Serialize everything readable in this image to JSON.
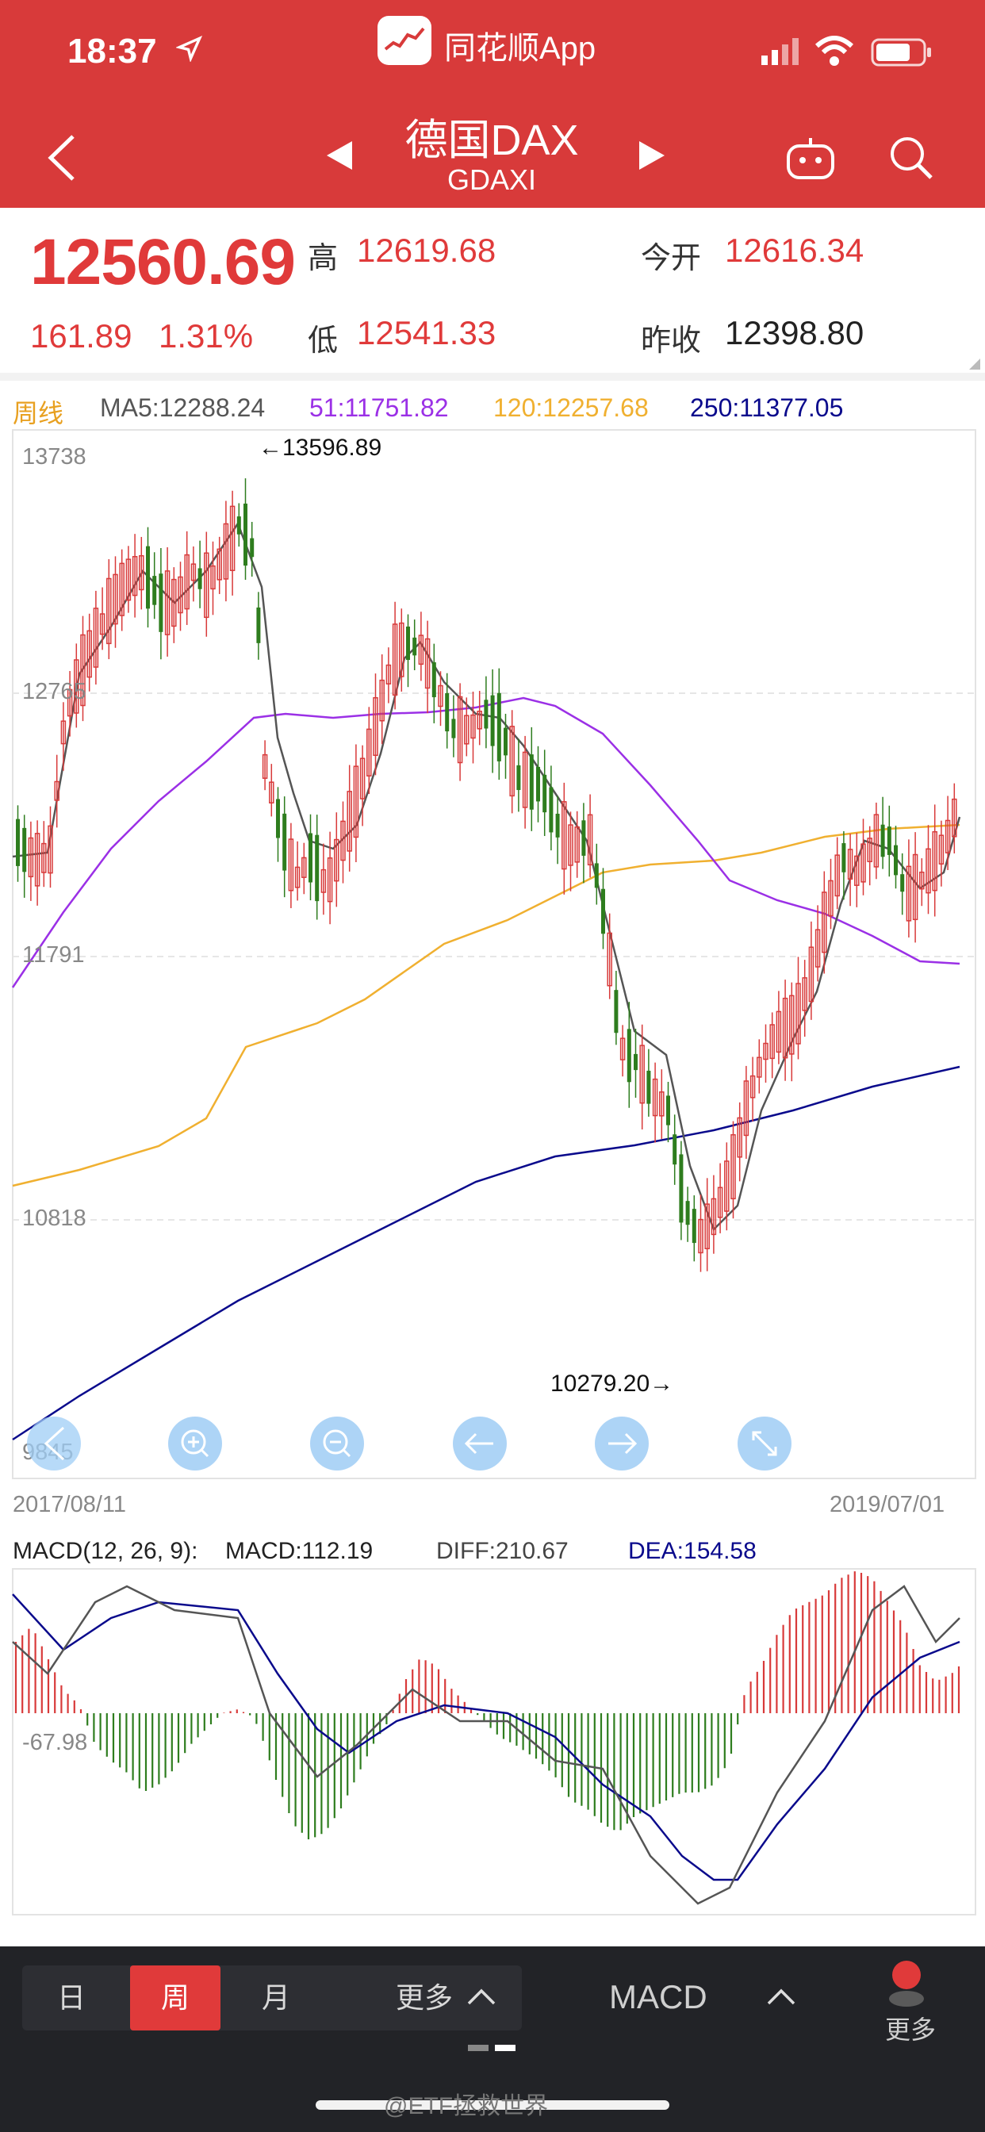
{
  "status_bar": {
    "time": "18:37",
    "app_name": "同花顺App"
  },
  "header": {
    "title": "德国DAX",
    "subtitle": "GDAXI"
  },
  "quote": {
    "price": "12560.69",
    "change": "161.89",
    "change_pct": "1.31%",
    "high_label": "高",
    "high": "12619.68",
    "low_label": "低",
    "low": "12541.33",
    "open_label": "今开",
    "open": "12616.34",
    "prev_close_label": "昨收",
    "prev_close": "12398.80"
  },
  "ma_legend": {
    "period": "周线",
    "ma5": "MA5:12288.24",
    "ma51": "51:11751.82",
    "ma120": "120:12257.68",
    "ma250": "250:11377.05"
  },
  "colors": {
    "up": "#d83a3a",
    "down": "#2e7d1e",
    "ma5": "#555555",
    "ma51": "#9b30e6",
    "ma120": "#f0b030",
    "ma250": "#0a0a8c",
    "accent": "#d83a3a"
  },
  "chart_data": [
    {
      "type": "candlestick",
      "ylim": [
        9845,
        13738
      ],
      "ytick_labels": [
        "13738",
        "12765",
        "11791",
        "10818",
        "9845"
      ],
      "x_start_label": "2017/08/11",
      "x_end_label": "2019/07/01",
      "max_annotation": "←13596.89",
      "min_annotation": "10279.20→",
      "max_value": 13596.89,
      "min_value": 10279.2
    },
    {
      "type": "bar",
      "title": "MACD(12, 26, 9):",
      "macd": "MACD:112.19",
      "diff": "DIFF:210.67",
      "dea": "DEA:154.58",
      "ytick_label": "-67.98"
    }
  ],
  "toolbar": {
    "icons": [
      "zoom-in-icon",
      "zoom-out-icon",
      "arrow-left-icon",
      "arrow-right-icon",
      "fullscreen-icon"
    ]
  },
  "bottom_nav": {
    "tab_day": "日",
    "tab_week": "周",
    "tab_month": "月",
    "tab_more": "更多",
    "indicator": "MACD",
    "more": "更多"
  },
  "watermark": "@ETF拯救世界"
}
